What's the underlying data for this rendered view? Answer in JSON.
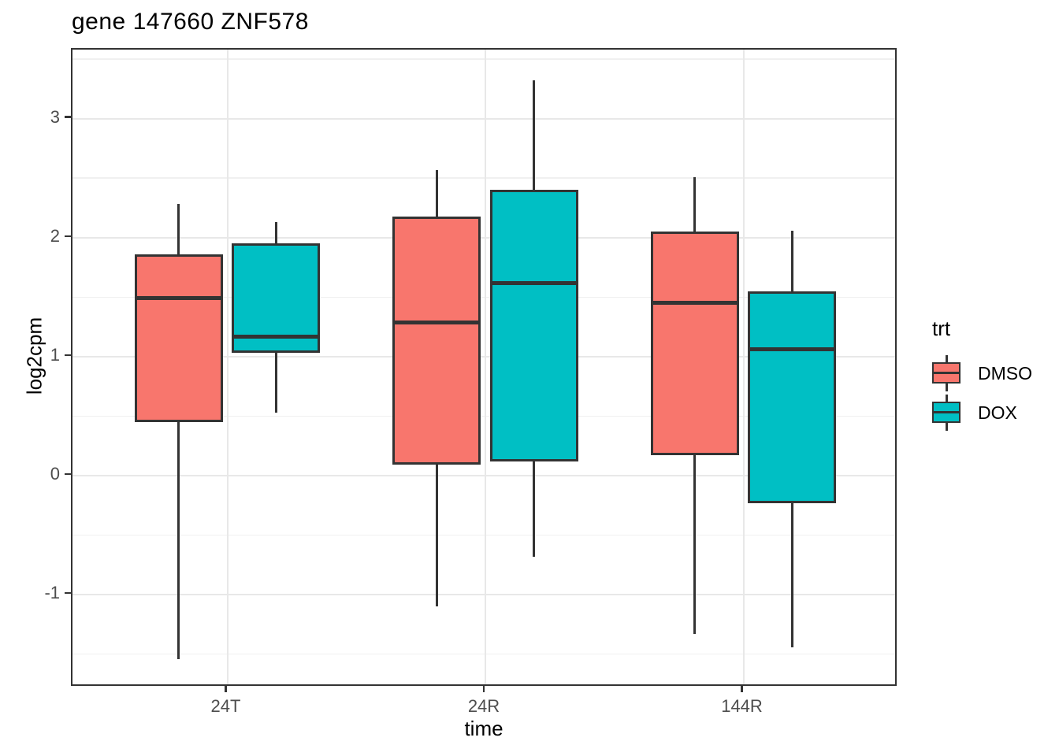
{
  "chart_data": {
    "type": "boxplot",
    "title": "gene 147660 ZNF578",
    "xlabel": "time",
    "ylabel": "log2cpm",
    "categories": [
      "24T",
      "24R",
      "144R"
    ],
    "y_ticks": [
      3,
      2,
      1,
      0,
      -1
    ],
    "y_minor_gridlines": [
      3.5,
      2.5,
      1.5,
      0.5,
      -0.5,
      -1.5
    ],
    "ylim": [
      -1.78,
      3.58
    ],
    "grid": true,
    "legend_position": "right",
    "legend": {
      "title": "trt",
      "entries": [
        {
          "label": "DMSO",
          "color": "#F8766D"
        },
        {
          "label": "DOX",
          "color": "#00BFC4"
        }
      ]
    },
    "colors": {
      "box_outline": "#333333",
      "grid_major": "#e8e8e8",
      "grid_minor": "#f0f0f0",
      "tick_text": "#4d4d4d",
      "panel_border": "#333333",
      "background": "#ffffff"
    },
    "series": [
      {
        "name": "DMSO",
        "color": "#F8766D",
        "boxes": [
          {
            "category": "24T",
            "whisker_low": -1.54,
            "q1": 0.45,
            "median": 1.49,
            "q3": 1.86,
            "whisker_high": 2.28
          },
          {
            "category": "24R",
            "whisker_low": -1.1,
            "q1": 0.09,
            "median": 1.29,
            "q3": 2.18,
            "whisker_high": 2.57
          },
          {
            "category": "144R",
            "whisker_low": -1.33,
            "q1": 0.17,
            "median": 1.45,
            "q3": 2.05,
            "whisker_high": 2.51
          }
        ]
      },
      {
        "name": "DOX",
        "color": "#00BFC4",
        "boxes": [
          {
            "category": "24T",
            "whisker_low": 0.53,
            "q1": 1.03,
            "median": 1.17,
            "q3": 1.95,
            "whisker_high": 2.13
          },
          {
            "category": "24R",
            "whisker_low": -0.68,
            "q1": 0.12,
            "median": 1.62,
            "q3": 2.4,
            "whisker_high": 3.32
          },
          {
            "category": "144R",
            "whisker_low": -1.44,
            "q1": -0.23,
            "median": 1.06,
            "q3": 1.55,
            "whisker_high": 2.06
          }
        ]
      }
    ]
  }
}
